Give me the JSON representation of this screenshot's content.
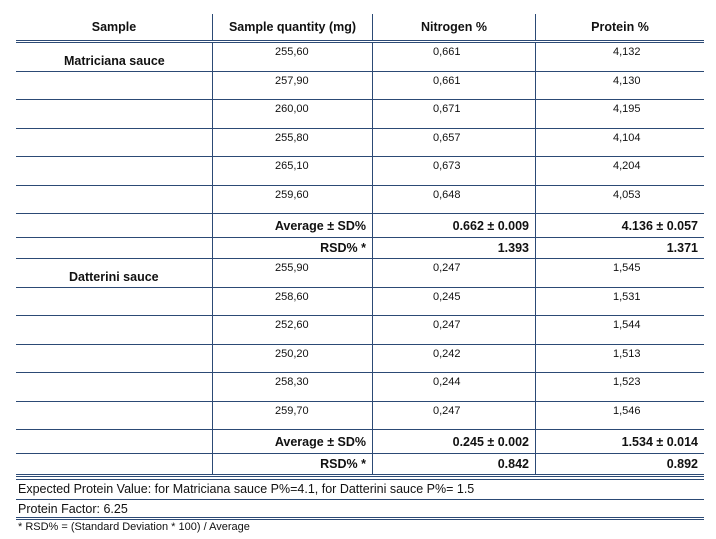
{
  "headers": [
    "Sample",
    "Sample quantity (mg)",
    "Nitrogen %",
    "Protein %"
  ],
  "groups": [
    {
      "name": "Matriciana sauce",
      "rows": [
        [
          "255,60",
          "0,661",
          "4,132"
        ],
        [
          "257,90",
          "0,661",
          "4,130"
        ],
        [
          "260,00",
          "0,671",
          "4,195"
        ],
        [
          "255,80",
          "0,657",
          "4,104"
        ],
        [
          "265,10",
          "0,673",
          "4,204"
        ],
        [
          "259,60",
          "0,648",
          "4,053"
        ]
      ],
      "avg_label": "Average ± SD%",
      "avg_nitrogen": "0.662 ± 0.009",
      "avg_protein": "4.136 ± 0.057",
      "rsd_label": "RSD% *",
      "rsd_nitrogen": "1.393",
      "rsd_protein": "1.371"
    },
    {
      "name": "Datterini sauce",
      "rows": [
        [
          "255,90",
          "0,247",
          "1,545"
        ],
        [
          "258,60",
          "0,245",
          "1,531"
        ],
        [
          "252,60",
          "0,247",
          "1,544"
        ],
        [
          "250,20",
          "0,242",
          "1,513"
        ],
        [
          "258,30",
          "0,244",
          "1,523"
        ],
        [
          "259,70",
          "0,247",
          "1,546"
        ]
      ],
      "avg_label": "Average ± SD%",
      "avg_nitrogen": "0.245 ± 0.002",
      "avg_protein": "1.534 ± 0.014",
      "rsd_label": "RSD% *",
      "rsd_nitrogen": "0.842",
      "rsd_protein": "0.892"
    }
  ],
  "footer": {
    "expected": "Expected Protein Value: for Matriciana sauce P%=4.1, for Datterini sauce P%= 1.5",
    "factor": "Protein Factor: 6.25",
    "note": "* RSD% = (Standard Deviation * 100) / Average"
  }
}
